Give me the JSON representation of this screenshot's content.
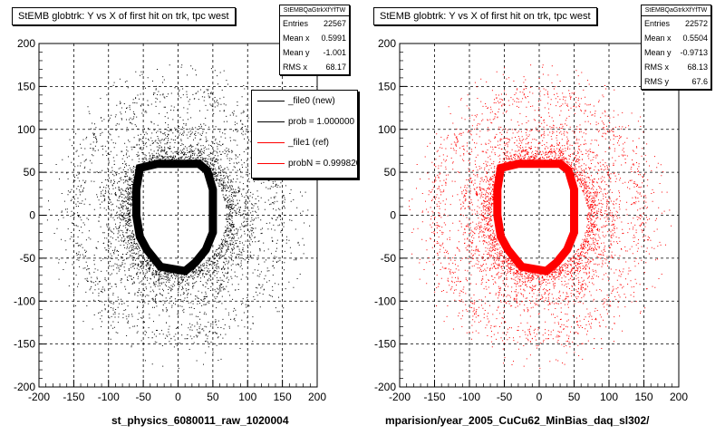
{
  "pads": [
    {
      "title": "StEMB globtrk: Y vs X of first hit on trk, tpc west",
      "stats_header": "StEMBQaGtrkXfYfTW",
      "stats": [
        {
          "label": "Entries",
          "value": "22567"
        },
        {
          "label": "Mean x",
          "value": "0.5991"
        },
        {
          "label": "Mean y",
          "value": "-1.001"
        },
        {
          "label": "RMS x",
          "value": "68.17"
        }
      ],
      "footer": "st_physics_6080011_raw_1020004",
      "color": "#000000"
    },
    {
      "title": "StEMB globtrk: Y vs X of first hit on trk, tpc west",
      "stats_header": "StEMBQaGtrkXfYfTW",
      "stats": [
        {
          "label": "Entries",
          "value": "22572"
        },
        {
          "label": "Mean x",
          "value": "0.5504"
        },
        {
          "label": "Mean y",
          "value": "-0.9713"
        },
        {
          "label": "RMS x",
          "value": "68.13"
        },
        {
          "label": "RMS y",
          "value": "67.6"
        }
      ],
      "footer": "mparision/year_2005_CuCu62_MinBias_daq_sl302/",
      "color": "#ff0000"
    }
  ],
  "legend": [
    {
      "label": "_file0 (new)",
      "color": "#000000"
    },
    {
      "label": "prob = 1.000000",
      "color": "#000000"
    },
    {
      "label": "_file1 (ref)",
      "color": "#ff0000"
    },
    {
      "label": "probN = 0.999820",
      "color": "#ff0000"
    }
  ],
  "stub_text": "",
  "chart_data": [
    {
      "type": "scatter",
      "title": "StEMB globtrk: Y vs X of first hit on trk, tpc west",
      "xlim": [
        -200,
        200
      ],
      "ylim": [
        -200,
        200
      ],
      "xticks": [
        -200,
        -150,
        -100,
        -50,
        0,
        50,
        100,
        150,
        200
      ],
      "yticks": [
        -200,
        -150,
        -100,
        -50,
        0,
        50,
        100,
        150,
        200
      ],
      "grid": true,
      "entries": 22567,
      "mean_x": 0.5991,
      "mean_y": -1.001,
      "rms_x": 68.17,
      "color": "#000000",
      "inner_boundary": [
        [
          -55,
          55
        ],
        [
          -30,
          60
        ],
        [
          30,
          60
        ],
        [
          42,
          52
        ],
        [
          50,
          30
        ],
        [
          50,
          -20
        ],
        [
          40,
          -40
        ],
        [
          25,
          -55
        ],
        [
          10,
          -65
        ],
        [
          -25,
          -60
        ],
        [
          -45,
          -40
        ],
        [
          -55,
          -25
        ],
        [
          -60,
          0
        ],
        [
          -60,
          30
        ]
      ],
      "rings": [
        60,
        100,
        140,
        170
      ]
    },
    {
      "type": "scatter",
      "title": "StEMB globtrk: Y vs X of first hit on trk, tpc west",
      "xlim": [
        -200,
        200
      ],
      "ylim": [
        -200,
        200
      ],
      "xticks": [
        -200,
        -150,
        -100,
        -50,
        0,
        50,
        100,
        150,
        200
      ],
      "yticks": [
        -200,
        -150,
        -100,
        -50,
        0,
        50,
        100,
        150,
        200
      ],
      "grid": true,
      "entries": 22572,
      "mean_x": 0.5504,
      "mean_y": -0.9713,
      "rms_x": 68.13,
      "rms_y": 67.6,
      "color": "#ff0000",
      "inner_boundary": [
        [
          -55,
          55
        ],
        [
          -30,
          60
        ],
        [
          30,
          60
        ],
        [
          42,
          52
        ],
        [
          50,
          30
        ],
        [
          50,
          -20
        ],
        [
          40,
          -40
        ],
        [
          25,
          -55
        ],
        [
          10,
          -65
        ],
        [
          -25,
          -60
        ],
        [
          -45,
          -40
        ],
        [
          -55,
          -25
        ],
        [
          -60,
          0
        ],
        [
          -60,
          30
        ]
      ],
      "rings": [
        60,
        100,
        140,
        170
      ]
    }
  ]
}
